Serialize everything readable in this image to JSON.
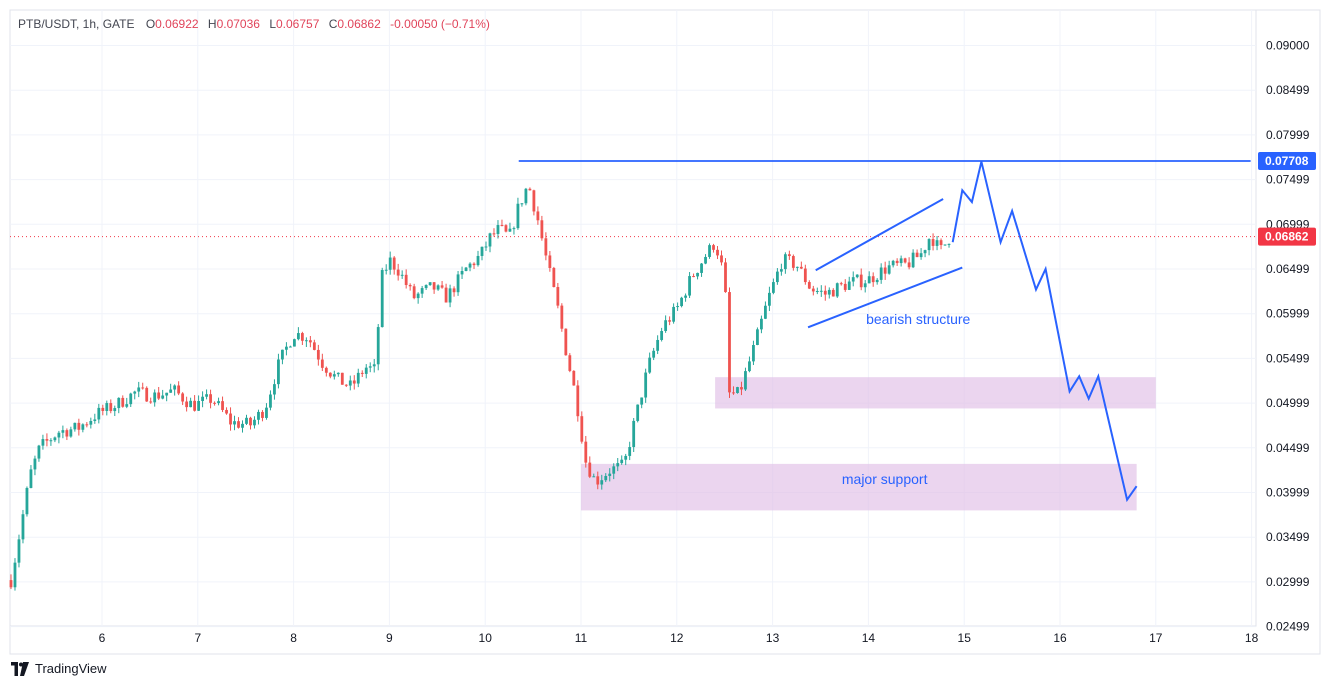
{
  "header": {
    "symbol": "PTB/USDT, 1h, GATE",
    "open_label": "O",
    "open": "0.06922",
    "high_label": "H",
    "high": "0.07036",
    "low_label": "L",
    "low": "0.06757",
    "close_label": "C",
    "close": "0.06862",
    "change": "-0.00050 (−0.71%)"
  },
  "branding": {
    "logo_text": "TradingView",
    "logo_icon": "tradingview-logo-icon"
  },
  "colors": {
    "up": "#26a69a",
    "down": "#ef5350",
    "drawing": "#2962ff",
    "zone_fill": "#e1bee7",
    "grid": "#f0f3fa",
    "axis_text": "#787b86",
    "resistance_badge": "#2962ff",
    "price_badge": "#f23645"
  },
  "chart_data": {
    "type": "candlestick",
    "title": "PTB/USDT, 1h, GATE",
    "xlabel": "",
    "ylabel": "",
    "x_ticks": [
      "6",
      "7",
      "8",
      "9",
      "10",
      "11",
      "12",
      "13",
      "14",
      "15",
      "16",
      "17",
      "18"
    ],
    "y_ticks": [
      "0.09000",
      "0.08499",
      "0.07999",
      "0.07499",
      "0.06999",
      "0.06499",
      "0.05999",
      "0.05499",
      "0.04999",
      "0.04499",
      "0.03999",
      "0.03499",
      "0.02999",
      "0.02499"
    ],
    "ylim": [
      0.0238,
      0.0925
    ],
    "grid": true,
    "price_path": [
      [
        5.05,
        0.0302
      ],
      [
        5.15,
        0.036
      ],
      [
        5.25,
        0.042
      ],
      [
        5.35,
        0.045
      ],
      [
        5.55,
        0.0468
      ],
      [
        5.75,
        0.0472
      ],
      [
        5.95,
        0.0488
      ],
      [
        6.15,
        0.0498
      ],
      [
        6.35,
        0.0512
      ],
      [
        6.55,
        0.0508
      ],
      [
        6.75,
        0.0514
      ],
      [
        6.95,
        0.0497
      ],
      [
        7.15,
        0.0505
      ],
      [
        7.35,
        0.0478
      ],
      [
        7.55,
        0.0476
      ],
      [
        7.7,
        0.0494
      ],
      [
        7.85,
        0.0545
      ],
      [
        8.0,
        0.0578
      ],
      [
        8.15,
        0.0574
      ],
      [
        8.3,
        0.0545
      ],
      [
        8.45,
        0.0527
      ],
      [
        8.6,
        0.0518
      ],
      [
        8.75,
        0.054
      ],
      [
        8.85,
        0.0537
      ],
      [
        8.92,
        0.064
      ],
      [
        9.0,
        0.066
      ],
      [
        9.1,
        0.0648
      ],
      [
        9.25,
        0.0618
      ],
      [
        9.45,
        0.063
      ],
      [
        9.6,
        0.0618
      ],
      [
        9.8,
        0.065
      ],
      [
        9.95,
        0.0665
      ],
      [
        10.05,
        0.0685
      ],
      [
        10.15,
        0.0695
      ],
      [
        10.25,
        0.0685
      ],
      [
        10.35,
        0.072
      ],
      [
        10.45,
        0.0745
      ],
      [
        10.55,
        0.0705
      ],
      [
        10.65,
        0.0655
      ],
      [
        10.75,
        0.061
      ],
      [
        10.85,
        0.0555
      ],
      [
        10.95,
        0.0505
      ],
      [
        11.05,
        0.0435
      ],
      [
        11.15,
        0.0412
      ],
      [
        11.3,
        0.0425
      ],
      [
        11.45,
        0.043
      ],
      [
        11.55,
        0.0475
      ],
      [
        11.7,
        0.054
      ],
      [
        11.85,
        0.0585
      ],
      [
        12.0,
        0.0605
      ],
      [
        12.15,
        0.064
      ],
      [
        12.3,
        0.0665
      ],
      [
        12.4,
        0.068
      ],
      [
        12.5,
        0.064
      ],
      [
        12.55,
        0.051
      ],
      [
        12.65,
        0.051
      ],
      [
        12.8,
        0.056
      ],
      [
        12.95,
        0.0615
      ],
      [
        13.1,
        0.066
      ],
      [
        13.25,
        0.0655
      ],
      [
        13.4,
        0.0628
      ],
      [
        13.55,
        0.0622
      ],
      [
        13.7,
        0.063
      ],
      [
        13.85,
        0.0636
      ],
      [
        14.0,
        0.0638
      ],
      [
        14.2,
        0.0652
      ],
      [
        14.4,
        0.0655
      ],
      [
        14.55,
        0.0667
      ],
      [
        14.65,
        0.0688
      ],
      [
        14.75,
        0.067
      ],
      [
        14.85,
        0.0686
      ]
    ],
    "last_price": "0.06862",
    "resistance_level": "0.07708",
    "annotations": [
      {
        "text": "bearish structure",
        "type": "rising-wedge"
      },
      {
        "text": "major support",
        "type": "support-zone"
      }
    ],
    "zones": [
      {
        "name": "upper support zone",
        "x": [
          12.4,
          17.0
        ],
        "y": [
          0.0494,
          0.0529
        ]
      },
      {
        "name": "major support",
        "x": [
          11.0,
          16.8
        ],
        "y": [
          0.038,
          0.0432
        ]
      }
    ],
    "wedge_lines": [
      {
        "x": [
          13.45,
          14.78
        ],
        "y": [
          0.06486,
          0.07283
        ]
      },
      {
        "x": [
          13.37,
          14.98
        ],
        "y": [
          0.05848,
          0.06516
        ]
      }
    ],
    "resistance_line_x": [
      10.35,
      17.99
    ],
    "projected_path": [
      [
        14.88,
        0.068
      ],
      [
        14.98,
        0.0738
      ],
      [
        15.08,
        0.0725
      ],
      [
        15.18,
        0.077
      ],
      [
        15.38,
        0.068
      ],
      [
        15.5,
        0.0715
      ],
      [
        15.75,
        0.0627
      ],
      [
        15.85,
        0.065
      ],
      [
        16.1,
        0.0513
      ],
      [
        16.2,
        0.053
      ],
      [
        16.3,
        0.0505
      ],
      [
        16.4,
        0.053
      ],
      [
        16.7,
        0.0392
      ],
      [
        16.8,
        0.0407
      ]
    ]
  }
}
